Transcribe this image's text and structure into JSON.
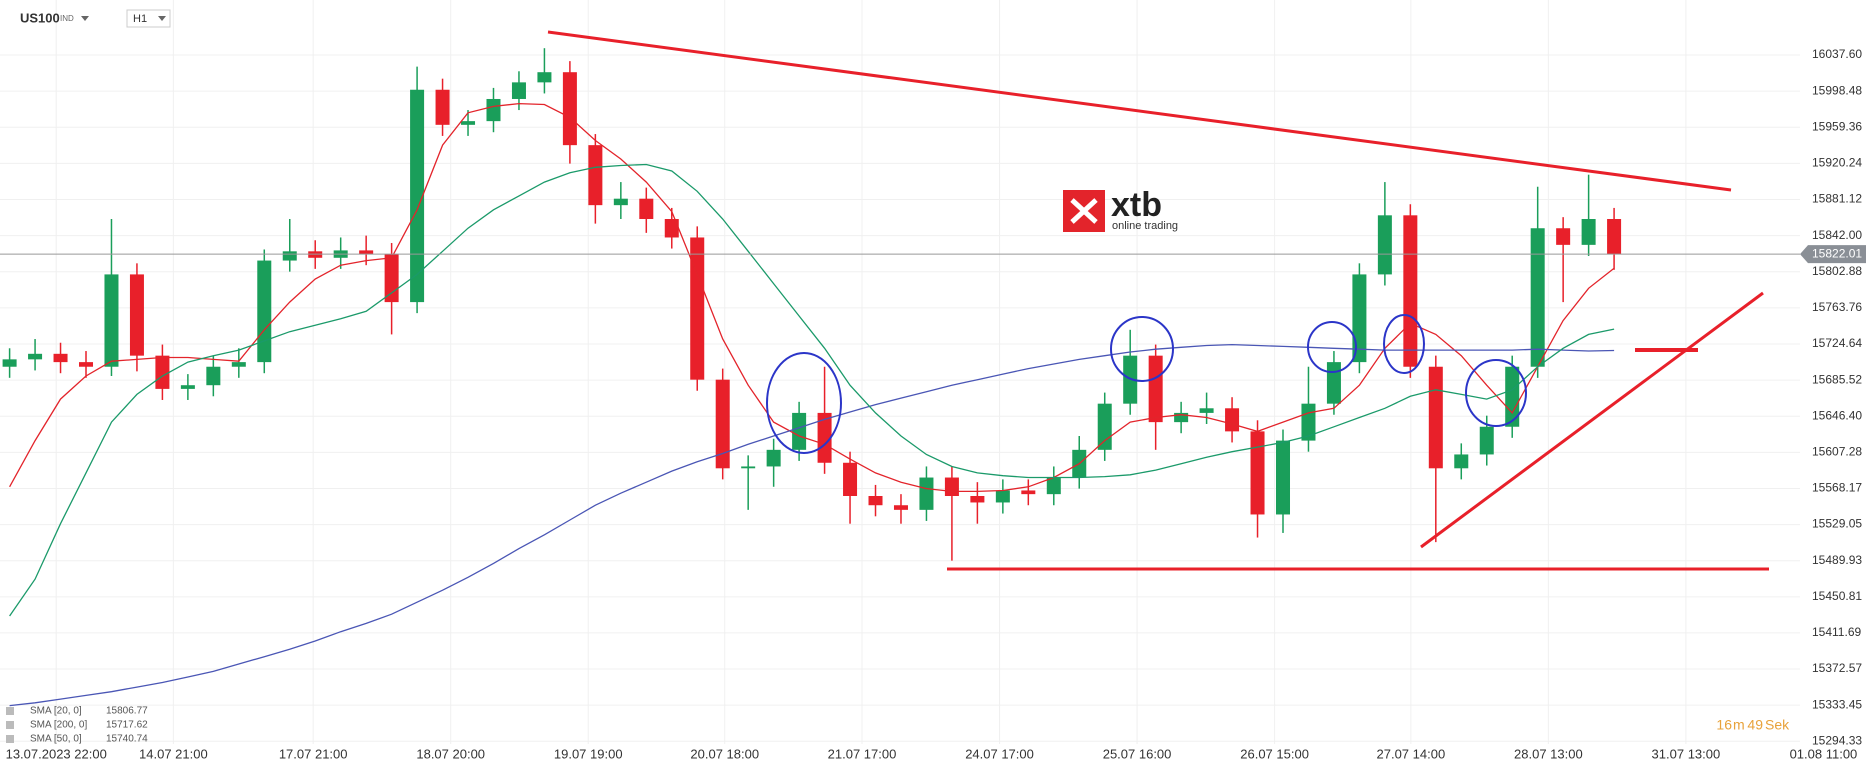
{
  "ui": {
    "symbol": "US100",
    "market": "IND",
    "timeframe": "H1"
  },
  "logo": {
    "brand": "xtb",
    "tagline": "online trading"
  },
  "timer": {
    "minutes": "16",
    "min_unit": "m",
    "seconds": "49",
    "sec_unit": "Sek"
  },
  "chart_data": {
    "type": "candlestick",
    "up_color": "#1a9e5a",
    "down_color": "#e8202a",
    "open": [
      15700,
      15708,
      15714,
      15705,
      15700,
      15800,
      15712,
      15676,
      15680,
      15700,
      15705,
      15815,
      15825,
      15818,
      15826,
      15822,
      15770,
      16000,
      15962,
      15966,
      15990,
      16008,
      16019,
      15940,
      15875,
      15882,
      15860,
      15840,
      15686,
      15590,
      15592,
      15610,
      15650,
      15596,
      15560,
      15550,
      15545,
      15580,
      15560,
      15553,
      15566,
      15562,
      15580,
      15610,
      15660,
      15712,
      15640,
      15650,
      15655,
      15630,
      15540,
      15620,
      15660,
      15705,
      15800,
      15864,
      15700,
      15590,
      15605,
      15635,
      15700,
      15850,
      15832,
      15860
    ],
    "high": [
      15720,
      15730,
      15726,
      15717,
      15860,
      15812,
      15724,
      15692,
      15712,
      15720,
      15827,
      15860,
      15837,
      15840,
      15842,
      15834,
      16025,
      16012,
      15978,
      16002,
      16020,
      16045,
      16031,
      15952,
      15900,
      15894,
      15872,
      15852,
      15698,
      15604,
      15622,
      15662,
      15700,
      15608,
      15572,
      15562,
      15592,
      15592,
      15575,
      15578,
      15578,
      15592,
      15625,
      15672,
      15740,
      15724,
      15662,
      15672,
      15667,
      15642,
      15632,
      15700,
      15717,
      15812,
      15900,
      15876,
      15712,
      15617,
      15647,
      15712,
      15895,
      15862,
      15908,
      15872
    ],
    "low": [
      15688,
      15696,
      15693,
      15688,
      15690,
      15695,
      15664,
      15664,
      15668,
      15688,
      15693,
      15803,
      15806,
      15806,
      15810,
      15735,
      15758,
      15950,
      15950,
      15954,
      15978,
      15996,
      15920,
      15855,
      15860,
      15845,
      15828,
      15674,
      15578,
      15545,
      15570,
      15598,
      15584,
      15530,
      15538,
      15530,
      15533,
      15490,
      15530,
      15541,
      15550,
      15550,
      15568,
      15598,
      15648,
      15610,
      15628,
      15638,
      15618,
      15515,
      15520,
      15608,
      15648,
      15693,
      15788,
      15688,
      15510,
      15578,
      15593,
      15623,
      15688,
      15770,
      15820,
      15805
    ],
    "close": [
      15708,
      15714,
      15705,
      15700,
      15800,
      15712,
      15676,
      15680,
      15700,
      15705,
      15815,
      15825,
      15818,
      15826,
      15822,
      15770,
      16000,
      15962,
      15966,
      15990,
      16008,
      16019,
      15940,
      15875,
      15882,
      15860,
      15840,
      15686,
      15590,
      15592,
      15610,
      15650,
      15596,
      15560,
      15550,
      15545,
      15580,
      15560,
      15553,
      15566,
      15562,
      15580,
      15610,
      15660,
      15712,
      15640,
      15650,
      15655,
      15630,
      15540,
      15620,
      15660,
      15705,
      15800,
      15864,
      15700,
      15590,
      15605,
      15635,
      15700,
      15850,
      15832,
      15860,
      15822.01
    ],
    "current_price": 15822.01,
    "series": [
      {
        "name": "SMA [20, 0]",
        "color": "#e3242b",
        "values": [
          15570,
          15620,
          15665,
          15690,
          15706,
          15708,
          15710,
          15710,
          15708,
          15706,
          15740,
          15770,
          15795,
          15810,
          15815,
          15818,
          15870,
          15940,
          15975,
          15982,
          15985,
          15984,
          15970,
          15945,
          15925,
          15900,
          15868,
          15800,
          15730,
          15680,
          15640,
          15625,
          15616,
          15600,
          15585,
          15575,
          15568,
          15565,
          15565,
          15566,
          15570,
          15580,
          15595,
          15620,
          15640,
          15645,
          15648,
          15645,
          15638,
          15630,
          15640,
          15650,
          15655,
          15680,
          15720,
          15747,
          15735,
          15712,
          15680,
          15650,
          15700,
          15750,
          15785,
          15806.77
        ]
      },
      {
        "name": "SMA [200, 0]",
        "color": "#4a56b5",
        "values": [
          15333,
          15336,
          15340,
          15344,
          15348,
          15353,
          15358,
          15364,
          15370,
          15378,
          15386,
          15394,
          15403,
          15413,
          15422,
          15432,
          15445,
          15458,
          15472,
          15487,
          15503,
          15518,
          15534,
          15550,
          15563,
          15575,
          15587,
          15597,
          15606,
          15616,
          15625,
          15634,
          15643,
          15651,
          15659,
          15666,
          15673,
          15680,
          15686,
          15692,
          15698,
          15703,
          15708,
          15712,
          15716,
          15719,
          15721,
          15723,
          15724,
          15723,
          15722,
          15721,
          15720,
          15719,
          15718,
          15718,
          15718,
          15718,
          15718,
          15718,
          15719,
          15718,
          15717,
          15717.62
        ]
      },
      {
        "name": "SMA [50, 0]",
        "color": "#1b9a6a",
        "values": [
          15430,
          15470,
          15530,
          15585,
          15640,
          15670,
          15690,
          15705,
          15712,
          15718,
          15728,
          15738,
          15745,
          15752,
          15760,
          15780,
          15800,
          15825,
          15850,
          15870,
          15885,
          15900,
          15910,
          15916,
          15918,
          15919,
          15912,
          15890,
          15860,
          15825,
          15790,
          15755,
          15720,
          15680,
          15650,
          15625,
          15605,
          15592,
          15585,
          15582,
          15580,
          15580,
          15580,
          15581,
          15583,
          15588,
          15595,
          15602,
          15608,
          15613,
          15618,
          15625,
          15635,
          15645,
          15655,
          15668,
          15675,
          15670,
          15665,
          15675,
          15700,
          15720,
          15735,
          15740.74
        ]
      }
    ],
    "xlim": [
      -0.377,
      70.3
    ],
    "xticks": [
      {
        "value": 1.83,
        "label": "13.07.2023 22:00"
      },
      {
        "value": 6.43,
        "label": "14.07 21:00"
      },
      {
        "value": 11.92,
        "label": "17.07 21:00"
      },
      {
        "value": 17.32,
        "label": "18.07 20:00"
      },
      {
        "value": 22.72,
        "label": "19.07 19:00"
      },
      {
        "value": 28.08,
        "label": "20.07 18:00"
      },
      {
        "value": 33.47,
        "label": "21.07 17:00"
      },
      {
        "value": 38.87,
        "label": "24.07 17:00"
      },
      {
        "value": 44.27,
        "label": "25.07 16:00"
      },
      {
        "value": 49.67,
        "label": "26.07 15:00"
      },
      {
        "value": 55.02,
        "label": "27.07 14:00"
      },
      {
        "value": 60.42,
        "label": "28.07 13:00"
      },
      {
        "value": 65.82,
        "label": "31.07 13:00"
      },
      {
        "value": 71.22,
        "label": "01.08 11:00"
      }
    ],
    "ylim": [
      15291.4,
      16097.2
    ],
    "yticks": [
      {
        "value": 16037.6,
        "label": "16037.60"
      },
      15998.48,
      15959.36,
      15920.24,
      15881.12,
      {
        "value": 15842,
        "label": "15842.00"
      },
      15802.88,
      15763.76,
      15724.64,
      15685.52,
      {
        "value": 15646.4,
        "label": "15646.40"
      },
      15607.28,
      15568.17,
      15529.05,
      15489.93,
      15450.81,
      15411.69,
      15372.57,
      15333.45,
      15294.33
    ],
    "grid": true
  }
}
